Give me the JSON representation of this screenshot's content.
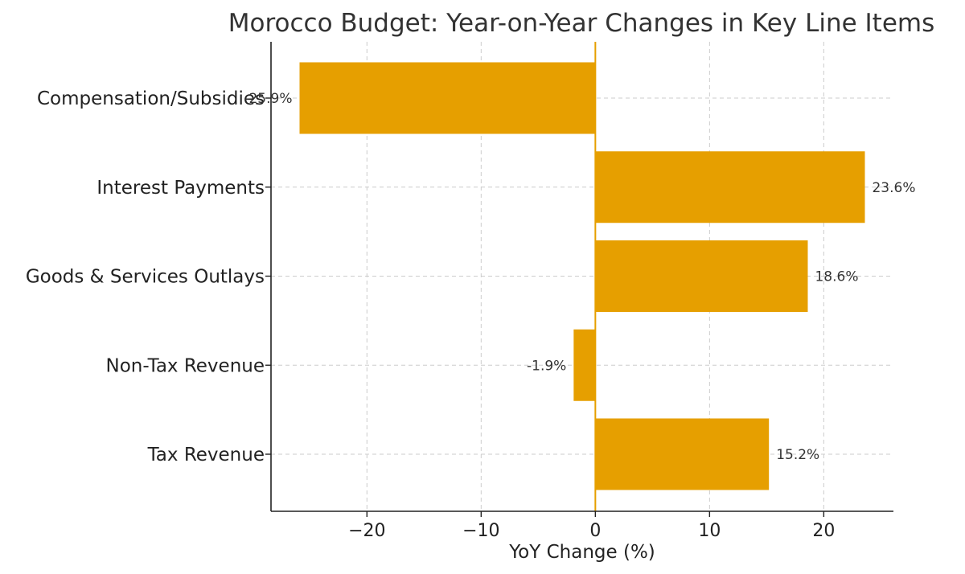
{
  "chart_data": {
    "type": "bar",
    "orientation": "horizontal",
    "title": "Morocco Budget: Year-on-Year Changes in Key Line Items",
    "xlabel": "YoY Change (%)",
    "ylabel": "",
    "categories": [
      "Tax Revenue",
      "Non-Tax Revenue",
      "Goods & Services Outlays",
      "Interest Payments",
      "Compensation/Subsidies"
    ],
    "values": [
      15.2,
      -1.9,
      18.6,
      23.6,
      -25.9
    ],
    "data_labels": [
      "15.2%",
      "-1.9%",
      "18.6%",
      "23.6%",
      "-25.9%"
    ],
    "xlim": [
      -28.4,
      26.1
    ],
    "xticks": [
      -20,
      -10,
      0,
      10,
      20
    ],
    "xtick_labels": [
      "−20",
      "−10",
      "0",
      "10",
      "20"
    ],
    "grid": true,
    "zero_line": true,
    "colors": {
      "bar": "#E69F00",
      "zero_line": "#E69F00"
    }
  }
}
